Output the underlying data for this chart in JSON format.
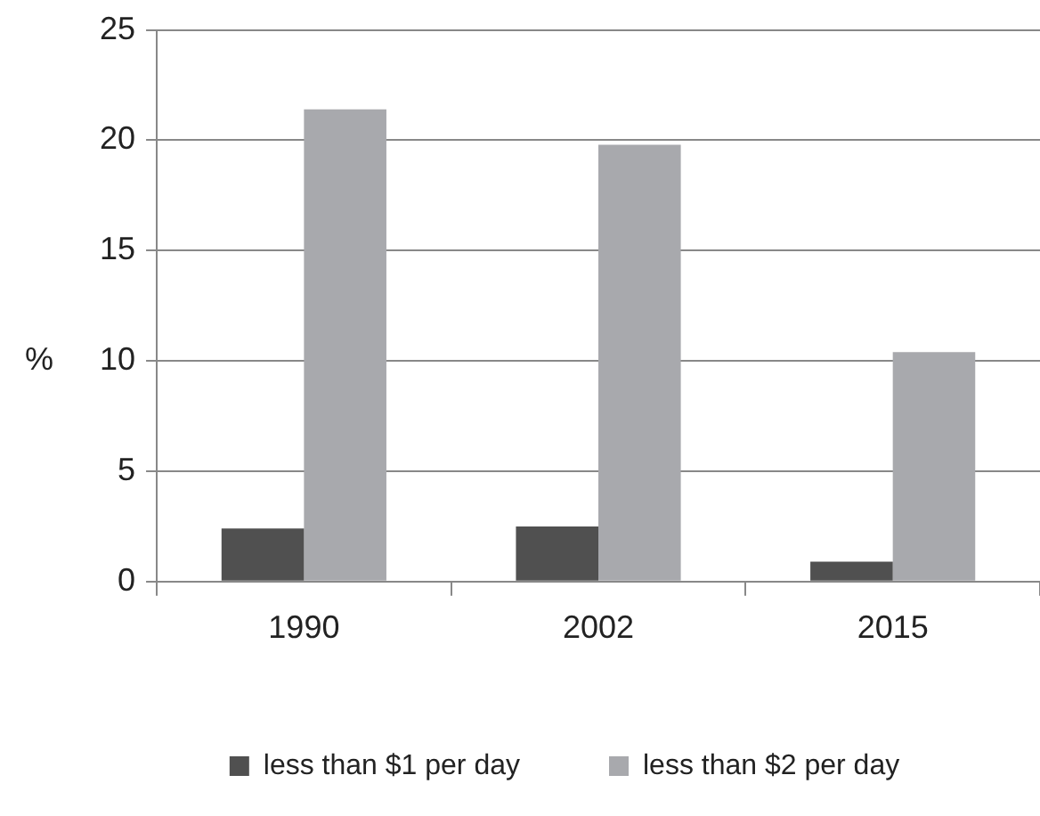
{
  "chart_data": {
    "type": "bar",
    "ylabel": "%",
    "categories": [
      "1990",
      "2002",
      "2015"
    ],
    "series": [
      {
        "name": "less than $1 per day",
        "color": "#505050",
        "values": [
          2.4,
          2.5,
          0.9
        ]
      },
      {
        "name": "less than $2 per day",
        "color": "#a8a9ad",
        "values": [
          21.4,
          19.8,
          10.4
        ]
      }
    ],
    "ylim": [
      0,
      25
    ],
    "yticks": [
      0,
      5,
      10,
      15,
      20,
      25
    ],
    "grid": "y",
    "legend": "bottom"
  }
}
